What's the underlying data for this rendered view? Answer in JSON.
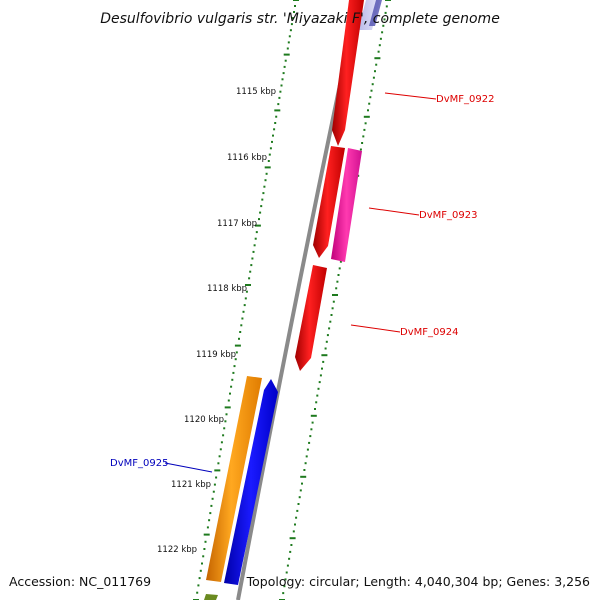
{
  "title": "Desulfovibrio vulgaris str. 'Miyazaki F', complete genome",
  "footer": {
    "accession": "Accession: NC_011769",
    "stats": "Topology: circular; Length: 4,040,304 bp; Genes: 3,256"
  },
  "ticks": [
    {
      "label": "1115 kbp"
    },
    {
      "label": "1116 kbp"
    },
    {
      "label": "1117 kbp"
    },
    {
      "label": "1118 kbp"
    },
    {
      "label": "1119 kbp"
    },
    {
      "label": "1120 kbp"
    },
    {
      "label": "1121 kbp"
    },
    {
      "label": "1122 kbp"
    }
  ],
  "genes": [
    {
      "label": "DvMF_0922",
      "color": "#dd0000"
    },
    {
      "label": "DvMF_0923",
      "color": "#dd0000"
    },
    {
      "label": "DvMF_0924",
      "color": "#dd0000"
    },
    {
      "label": "DvMF_0925",
      "color": "#0000bb"
    }
  ],
  "colors": {
    "backbone": "#8a8a8a",
    "ruler": "#1e7a1e",
    "gene_red": "#ff1010",
    "gene_pink": "#ff2aa0",
    "gene_orange": "#ff9a10",
    "gene_blue": "#0a0aff"
  }
}
